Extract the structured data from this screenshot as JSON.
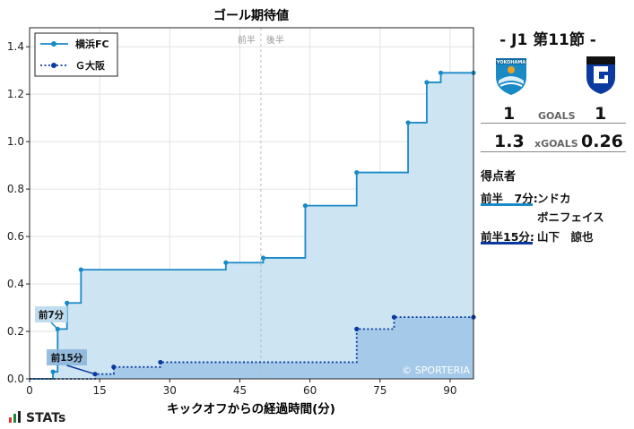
{
  "chart_data": {
    "type": "step-area",
    "title": "ゴール期待値",
    "xlabel": "キックオフからの経過時間(分)",
    "ylabel": "",
    "xlim": [
      0,
      95
    ],
    "ylim": [
      0,
      1.48
    ],
    "xticks": [
      0,
      15,
      30,
      45,
      60,
      75,
      90
    ],
    "yticks": [
      0.0,
      0.2,
      0.4,
      0.6,
      0.8,
      1.0,
      1.2,
      1.4
    ],
    "ytick_labels": [
      "0.0",
      "0.2",
      "0.4",
      "0.6",
      "0.8",
      "1.0",
      "1.2",
      "1.4"
    ],
    "grid": true,
    "legend_position": "top-left",
    "halftime_labels": {
      "first": "前半",
      "second": "後半",
      "x": 49.5
    },
    "watermark": "© SPORTERIA",
    "series": [
      {
        "name": "横浜FC",
        "color": "#1a8ac6",
        "fill": "#cde4f2",
        "line": "solid",
        "x": [
          0,
          5,
          6,
          8,
          11,
          42,
          50,
          59,
          70,
          81,
          85,
          88,
          95
        ],
        "y": [
          0,
          0.03,
          0.21,
          0.32,
          0.46,
          0.49,
          0.51,
          0.73,
          0.87,
          1.08,
          1.25,
          1.29,
          1.29
        ]
      },
      {
        "name": "Ｇ大阪",
        "color": "#0a3aa0",
        "fill": "#9ec4e6",
        "line": "dotted",
        "x": [
          0,
          14,
          18,
          28,
          70,
          78,
          95
        ],
        "y": [
          0,
          0.02,
          0.05,
          0.07,
          0.21,
          0.26,
          0.26
        ]
      }
    ],
    "annotations": [
      {
        "text": "前7分",
        "x": 6,
        "y": 0.21,
        "team": 0
      },
      {
        "text": "前15分",
        "x": 14,
        "y": 0.02,
        "team": 1
      }
    ]
  },
  "match": {
    "title": "-  J1 第11節  -",
    "home_goals": "1",
    "away_goals": "1",
    "goals_label": "GOALS",
    "home_xg": "1.3",
    "away_xg": "0.26",
    "xg_label": "xGOALS",
    "home_color": "#1a8ac6",
    "away_color": "#0a3aa0"
  },
  "scorers": {
    "heading": "得点者",
    "items": [
      {
        "time": "前半　7分:",
        "names": [
          "ンドカ",
          "ボニフェイス"
        ],
        "team_color": "#1a8ac6"
      },
      {
        "time": "前半15分:",
        "names": [
          "山下　諒也"
        ],
        "team_color": "#0a3aa0"
      }
    ]
  },
  "brand": {
    "name": "STATs"
  }
}
